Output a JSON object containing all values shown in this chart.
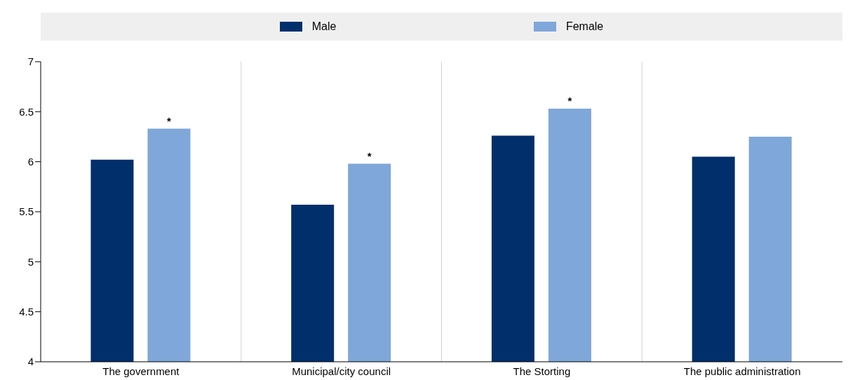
{
  "chart_data": {
    "type": "bar",
    "categories": [
      "The government",
      "Municipal/city council",
      "The Storting",
      "The public administration"
    ],
    "series": [
      {
        "name": "Male",
        "color": "#002f6c",
        "values": [
          6.02,
          5.57,
          6.26,
          6.05
        ]
      },
      {
        "name": "Female",
        "color": "#7fa7d9",
        "values": [
          6.33,
          5.98,
          6.53,
          6.25
        ],
        "value_labels": [
          "*",
          "*",
          "*",
          null
        ]
      }
    ],
    "ylim": [
      4,
      7
    ],
    "yticks": [
      4,
      4.5,
      5,
      5.5,
      6,
      6.5,
      7
    ],
    "grid": "x",
    "legend": "top"
  }
}
